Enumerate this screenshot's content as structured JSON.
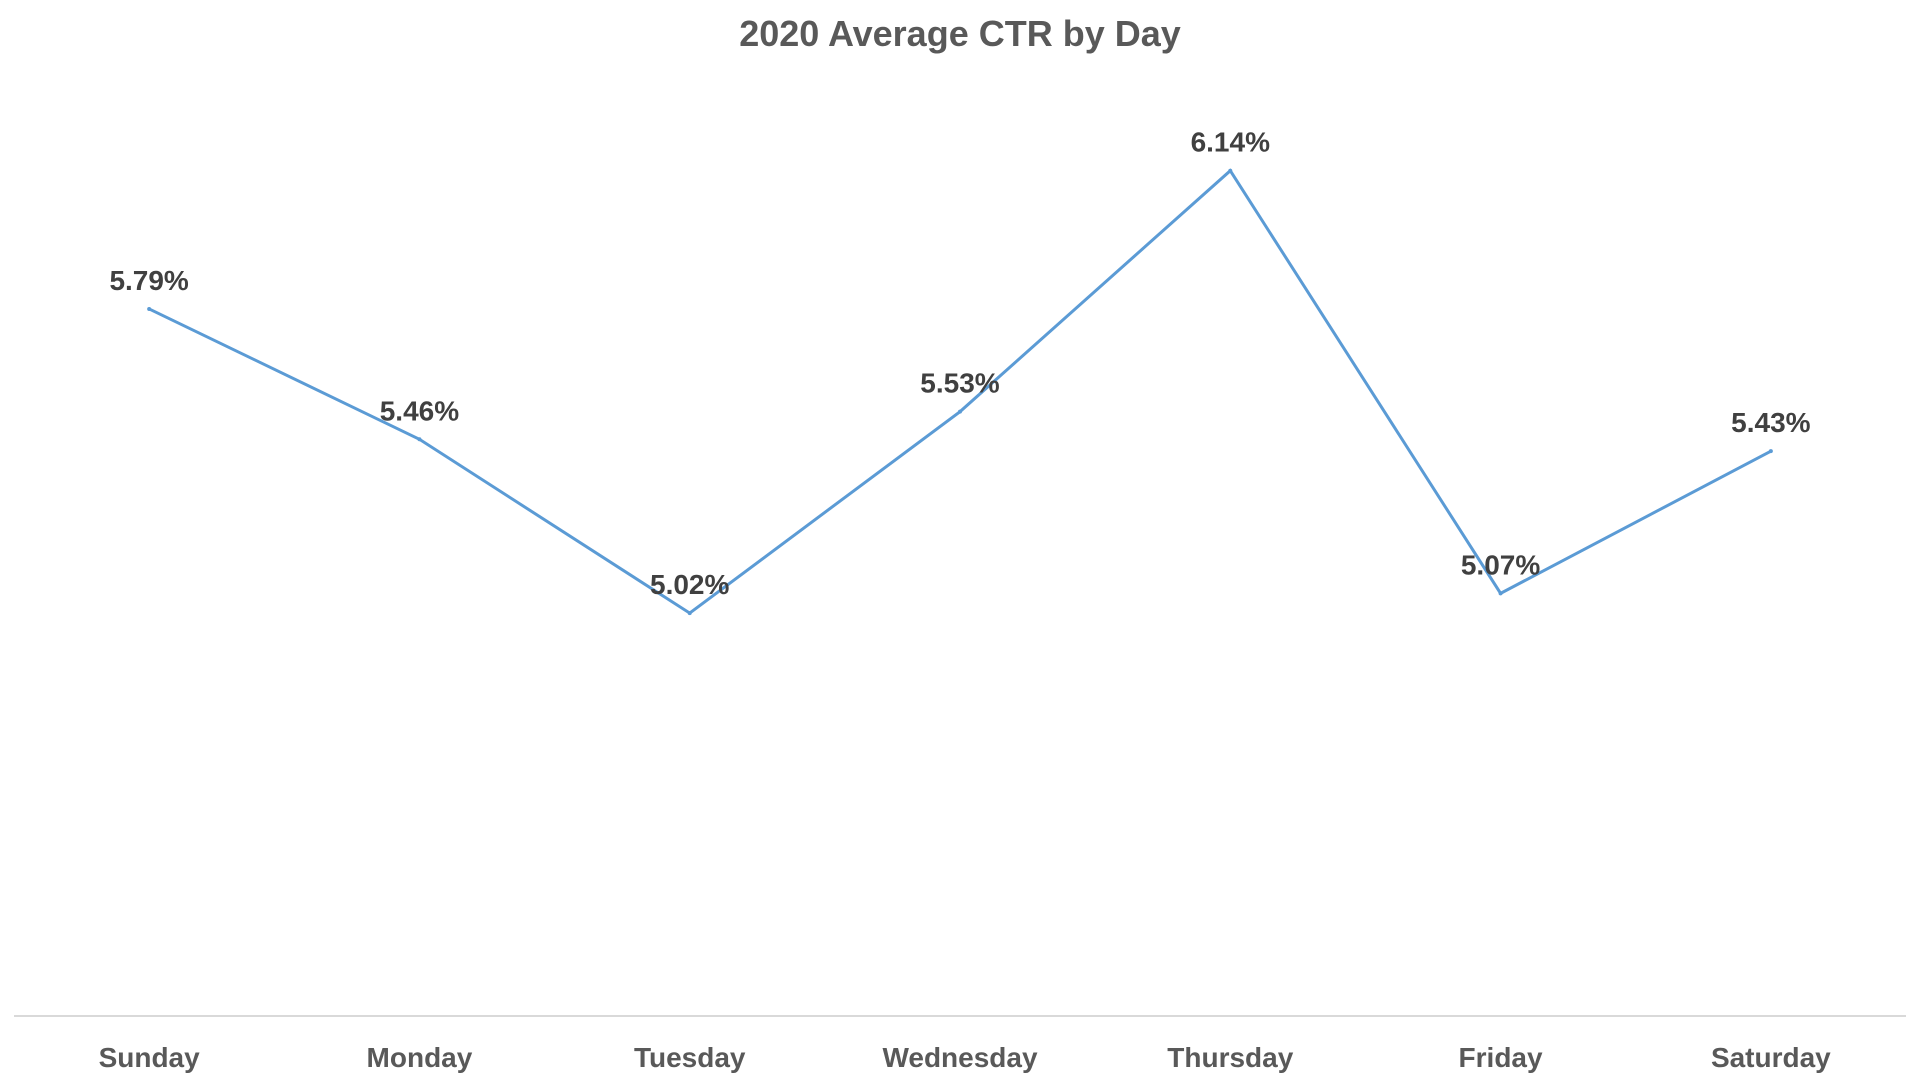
{
  "chart_data": {
    "type": "line",
    "title": "2020 Average CTR by Day",
    "xlabel": "",
    "ylabel": "",
    "categories": [
      "Sunday",
      "Monday",
      "Tuesday",
      "Wednesday",
      "Thursday",
      "Friday",
      "Saturday"
    ],
    "series": [
      {
        "name": "",
        "values": [
          5.79,
          5.46,
          5.02,
          5.53,
          6.14,
          5.07,
          5.43
        ],
        "labels": [
          "5.79%",
          "5.46%",
          "5.02%",
          "5.53%",
          "6.14%",
          "5.07%",
          "5.43%"
        ],
        "color": "#5b9bd5"
      }
    ],
    "ylim": [
      4.0,
      6.4
    ],
    "grid": false,
    "legend": "none"
  }
}
